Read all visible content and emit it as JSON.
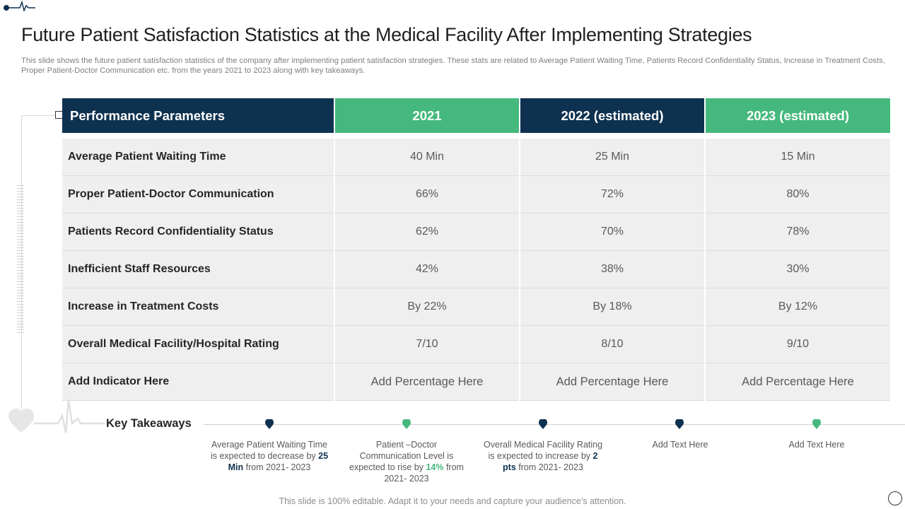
{
  "slide": {
    "title": "Future Patient Satisfaction Statistics at the Medical Facility After Implementing Strategies",
    "subtitle": "This slide shows the future patient satisfaction statistics of the company after implementing patient satisfaction strategies. These stats are related to Average Patient Waiting Time, Patients Record Confidentiality Status, Increase in Treatment Costs, Proper Patient-Doctor Communication etc. from the years 2021 to 2023 along with key takeaways.",
    "footer": "This slide is 100% editable. Adapt it to your needs and capture your audience’s attention."
  },
  "table": {
    "headers": [
      "Performance Parameters",
      "2021",
      "2022 (estimated)",
      "2023 (estimated)"
    ],
    "rows": [
      {
        "param": "Average Patient Waiting Time",
        "v2021": "40 Min",
        "v2022": "25 Min",
        "v2023": "15 Min"
      },
      {
        "param": "Proper Patient-Doctor Communication",
        "v2021": "66%",
        "v2022": "72%",
        "v2023": "80%"
      },
      {
        "param": "Patients Record Confidentiality  Status",
        "v2021": "62%",
        "v2022": "70%",
        "v2023": "78%"
      },
      {
        "param": "Inefficient Staff Resources",
        "v2021": "42%",
        "v2022": "38%",
        "v2023": "30%"
      },
      {
        "param": "Increase in Treatment Costs",
        "v2021": "By 22%",
        "v2022": "By 18%",
        "v2023": "By 12%"
      },
      {
        "param": "Overall Medical Facility/Hospital Rating",
        "v2021": "7/10",
        "v2022": "8/10",
        "v2023": "9/10"
      },
      {
        "param": "Add Indicator Here",
        "v2021": "Add Percentage Here",
        "v2022": "Add Percentage Here",
        "v2023": "Add Percentage Here"
      }
    ]
  },
  "takeaways": {
    "label": "Key Takeaways",
    "items": [
      {
        "pre": "Average  Patient Waiting Time is expected to decrease by ",
        "highlight": "25 Min",
        "post": " from 2021- 2023",
        "color": "#0e3150"
      },
      {
        "pre": "Patient –Doctor Communication Level is expected to rise by ",
        "highlight": "14%",
        "post": " from 2021- 2023",
        "color": "#45b97d"
      },
      {
        "pre": "Overall  Medical Facility Rating is expected to increase by ",
        "highlight": "2 pts",
        "post": " from 2021- 2023",
        "color": "#0e3150"
      },
      {
        "pre": "Add Text Here",
        "highlight": "",
        "post": "",
        "color": "#0e3150"
      },
      {
        "pre": "Add Text Here",
        "highlight": "",
        "post": "",
        "color": "#45b97d"
      }
    ]
  },
  "colors": {
    "navy": "#0e3150",
    "green": "#45b97d",
    "cell_bg": "#efefef"
  }
}
